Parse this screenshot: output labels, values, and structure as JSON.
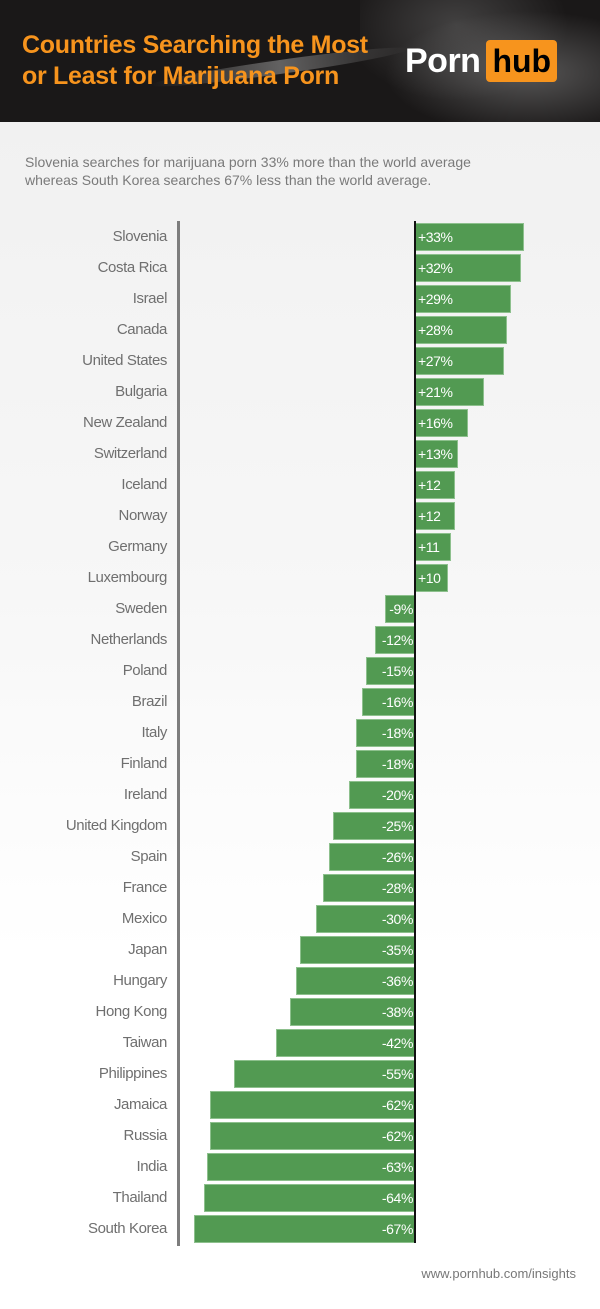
{
  "header": {
    "title_line1": "Countries Searching the Most",
    "title_line2": "or Least for Marijuana Porn",
    "logo_left": "Porn",
    "logo_right": "hub",
    "accent_color": "#f7941d"
  },
  "subtitle": {
    "line1": "Slovenia searches for marijuana porn 33% more than the world average",
    "line2": "whereas South Korea searches 67% less than the world average."
  },
  "footer": {
    "url": "www.pornhub.com/insights"
  },
  "chart_data": {
    "type": "bar",
    "orientation": "horizontal",
    "title": "Countries Searching the Most or Least for Marijuana Porn",
    "subtitle": "Slovenia searches for marijuana porn 33% more than the world average whereas South Korea searches 67% less than the world average.",
    "xlabel": "",
    "ylabel": "",
    "unit": "% vs world average",
    "bar_color": "#529a52",
    "grid": false,
    "legend": null,
    "categories": [
      "Slovenia",
      "Costa Rica",
      "Israel",
      "Canada",
      "United States",
      "Bulgaria",
      "New Zealand",
      "Switzerland",
      "Iceland",
      "Norway",
      "Germany",
      "Luxembourg",
      "Sweden",
      "Netherlands",
      "Poland",
      "Brazil",
      "Italy",
      "Finland",
      "Ireland",
      "United Kingdom",
      "Spain",
      "France",
      "Mexico",
      "Japan",
      "Hungary",
      "Hong Kong",
      "Taiwan",
      "Philippines",
      "Jamaica",
      "Russia",
      "India",
      "Thailand",
      "South Korea"
    ],
    "values": [
      33,
      32,
      29,
      28,
      27,
      21,
      16,
      13,
      12,
      12,
      11,
      10,
      -9,
      -12,
      -15,
      -16,
      -18,
      -18,
      -20,
      -25,
      -26,
      -28,
      -30,
      -35,
      -36,
      -38,
      -42,
      -55,
      -62,
      -62,
      -63,
      -64,
      -67
    ],
    "value_labels": [
      "+33%",
      "+32%",
      "+29%",
      "+28%",
      "+27%",
      "+21%",
      "+16%",
      "+13%",
      "+12",
      "+12",
      "+11",
      "+10",
      "-9%",
      "-12%",
      "-15%",
      "-16%",
      "-18%",
      "-18%",
      "-20%",
      "-25%",
      "-26%",
      "-28%",
      "-30%",
      "-35%",
      "-36%",
      "-38%",
      "-42%",
      "-55%",
      "-62%",
      "-62%",
      "-63%",
      "-64%",
      "-67%"
    ],
    "xlim": [
      -67,
      33
    ]
  }
}
